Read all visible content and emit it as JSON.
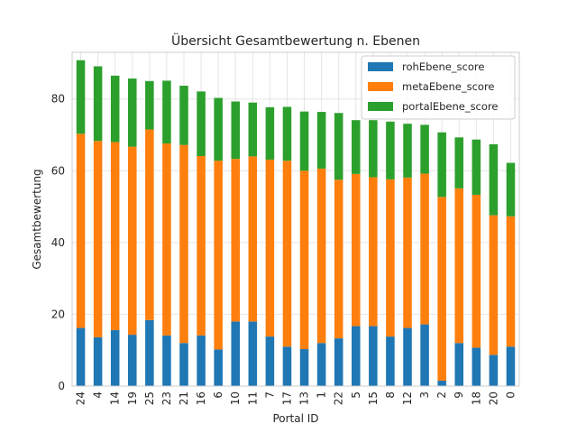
{
  "chart_data": {
    "type": "bar",
    "stacked": true,
    "title": "Übersicht Gesamtbewertung n. Ebenen",
    "xlabel": "Portal ID",
    "ylabel": "Gesamtbewertung",
    "ylim": [
      0,
      93
    ],
    "yticks": [
      0,
      20,
      40,
      60,
      80
    ],
    "grid": true,
    "legend_position": "top-right",
    "categories": [
      "24",
      "4",
      "14",
      "19",
      "25",
      "23",
      "21",
      "16",
      "6",
      "10",
      "11",
      "7",
      "17",
      "13",
      "1",
      "22",
      "5",
      "15",
      "8",
      "12",
      "3",
      "2",
      "9",
      "18",
      "20",
      "0"
    ],
    "series": [
      {
        "name": "rohEbene_score",
        "color": "#1f77b4",
        "values": [
          16.2,
          13.6,
          15.6,
          14.3,
          18.4,
          14.1,
          12.0,
          14.1,
          10.2,
          18.0,
          18.0,
          13.8,
          11.0,
          10.3,
          12.0,
          13.3,
          16.7,
          16.7,
          13.8,
          16.2,
          17.2,
          1.5,
          12.0,
          10.7,
          8.7,
          11.0
        ]
      },
      {
        "name": "metaEbene_score",
        "color": "#ff7f0e",
        "values": [
          54.1,
          54.7,
          52.4,
          52.4,
          53.1,
          53.5,
          55.2,
          50.0,
          52.6,
          45.3,
          46.0,
          49.3,
          51.8,
          49.7,
          48.6,
          44.2,
          42.4,
          41.5,
          43.8,
          41.9,
          42.0,
          51.2,
          43.1,
          42.6,
          38.9,
          36.3
        ]
      },
      {
        "name": "portalEbene_score",
        "color": "#2ca02c",
        "values": [
          20.5,
          20.8,
          18.5,
          19.0,
          13.5,
          17.5,
          16.5,
          18.0,
          17.5,
          16.0,
          15.0,
          14.6,
          15.0,
          16.5,
          15.8,
          18.6,
          15.0,
          15.9,
          16.1,
          15.0,
          13.6,
          18.0,
          14.2,
          15.4,
          19.8,
          14.9
        ]
      }
    ]
  }
}
